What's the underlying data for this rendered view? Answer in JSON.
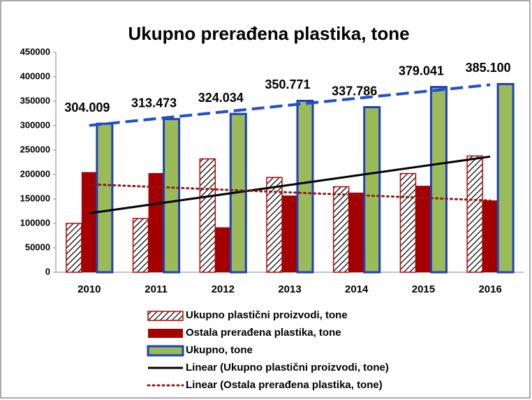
{
  "chart_data": {
    "type": "bar",
    "title": "Ukupno prerađena plastika, tone",
    "categories": [
      "2010",
      "2011",
      "2012",
      "2013",
      "2014",
      "2015",
      "2016"
    ],
    "series": [
      {
        "name": "Ukupno plastični proizvodi, tone",
        "color": "#ffffff",
        "pattern": "hatch",
        "border": "#c00000",
        "values": [
          100000,
          110000,
          232000,
          194000,
          175000,
          202000,
          238000
        ]
      },
      {
        "name": "Ostala prerađena plastika, tone",
        "color": "#a50000",
        "border": "#a50000",
        "values": [
          205000,
          203000,
          92000,
          157000,
          163000,
          177000,
          147000
        ]
      },
      {
        "name": "Ukupno, tone",
        "color": "#9bbb59",
        "border": "#1f3fbf",
        "values": [
          304009,
          313473,
          324034,
          350771,
          337786,
          379041,
          385100
        ],
        "value_labels": [
          "304.009",
          "313.473",
          "324.034",
          "350.771",
          "337.786",
          "379.041",
          "385.100"
        ]
      }
    ],
    "trendlines": [
      {
        "name": "Linear (Ukupno plastični proizvodi, tone)",
        "series": 0,
        "color": "#000000",
        "style": "solid"
      },
      {
        "name": "Linear (Ostala prerađena plastika, tone)",
        "series": 1,
        "color": "#8b1a1a",
        "style": "dotted"
      },
      {
        "series": 2,
        "color": "#1f4fd0",
        "style": "dashed"
      }
    ],
    "ylim": [
      0,
      450000
    ],
    "yticks": [
      0,
      50000,
      100000,
      150000,
      200000,
      250000,
      300000,
      350000,
      400000,
      450000
    ],
    "grid": false
  }
}
